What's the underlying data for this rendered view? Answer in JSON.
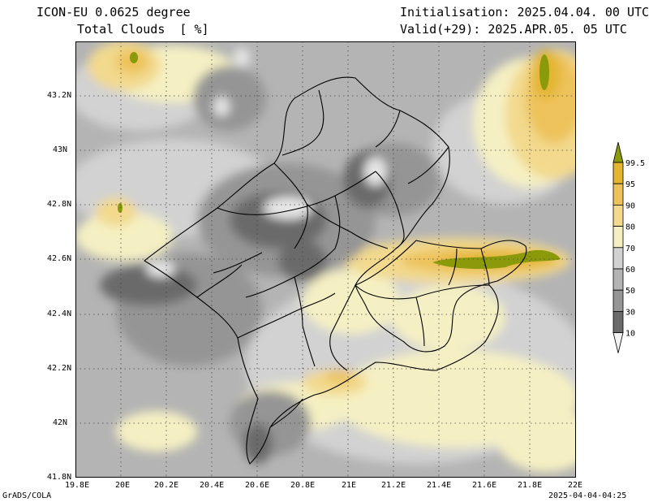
{
  "header": {
    "model": "ICON-EU 0.0625 degree",
    "variable": "Total Clouds  [ %]",
    "init": "Initialisation: 2025.04.04. 00 UTC",
    "valid": "Valid(+29): 2025.APR.05. 05 UTC"
  },
  "footer": {
    "left": "GrADS/COLA",
    "right": "2025-04-04-04:25"
  },
  "axes": {
    "lat_labels": [
      "43.2N",
      "43N",
      "42.8N",
      "42.6N",
      "42.4N",
      "42.2N",
      "42N",
      "41.8N"
    ],
    "lon_labels": [
      "19.8E",
      "20E",
      "20.2E",
      "20.4E",
      "20.6E",
      "20.8E",
      "21E",
      "21.2E",
      "21.4E",
      "21.6E",
      "21.8E",
      "22E"
    ]
  },
  "legend": {
    "levels": [
      "99.5",
      "95",
      "90",
      "80",
      "70",
      "60",
      "50",
      "30",
      "10"
    ],
    "colors": [
      "#8b9a0a",
      "#e3b531",
      "#edc25a",
      "#f2d98d",
      "#f5f0c3",
      "#d2d2d2",
      "#b4b4b4",
      "#959595",
      "#6a6a6a",
      "#f2f2f2"
    ]
  }
}
